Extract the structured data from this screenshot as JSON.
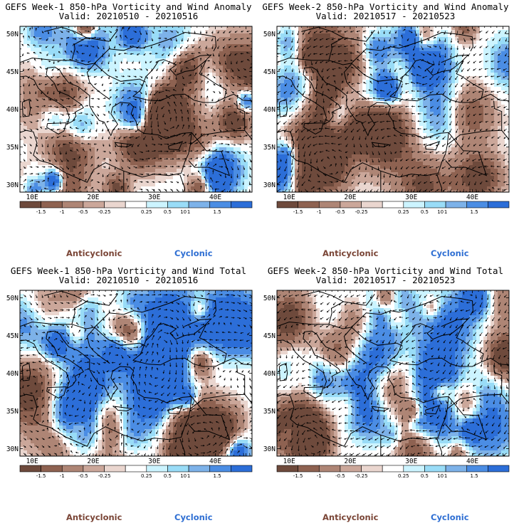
{
  "panels": [
    {
      "id": "w1-anomaly",
      "title_line1": "GEFS Week-1 850-hPa Vorticity and Wind Anomaly",
      "title_line2": "Valid: 20210510 - 20210516",
      "seed": 11
    },
    {
      "id": "w2-anomaly",
      "title_line1": "GEFS Week-2 850-hPa Vorticity and Wind Anomaly",
      "title_line2": "Valid: 20210517 - 20210523",
      "seed": 27
    },
    {
      "id": "w1-total",
      "title_line1": "GEFS Week-1 850-hPa Vorticity and Wind Total",
      "title_line2": "Valid: 20210510 - 20210516",
      "seed": 43
    },
    {
      "id": "w2-total",
      "title_line1": "GEFS Week-2 850-hPa Vorticity and Wind Total",
      "title_line2": "Valid: 20210517 - 20210523",
      "seed": 59
    }
  ],
  "map": {
    "lon_range": [
      8,
      46
    ],
    "lat_range": [
      29,
      51
    ],
    "y_ticks": [
      "50N",
      "45N",
      "40N",
      "35N",
      "30N"
    ],
    "x_ticks": [
      "10E",
      "20E",
      "30E",
      "40E"
    ]
  },
  "colorbar": {
    "tick_labels": [
      "-1.5",
      "-1",
      "-0.5",
      "-0.25",
      "0.25",
      "0.5",
      "1",
      "1.5"
    ],
    "scale_label": "10",
    "colors": [
      "#6e4a3c",
      "#8e6251",
      "#ae8575",
      "#cba79a",
      "#ead6cf",
      "#ffffff",
      "#ccf4ff",
      "#99dcf7",
      "#7db2e9",
      "#4b8de4",
      "#2c6ed8"
    ]
  },
  "legend": {
    "anticyclonic": "Anticyclonic",
    "cyclonic": "Cyclonic"
  }
}
